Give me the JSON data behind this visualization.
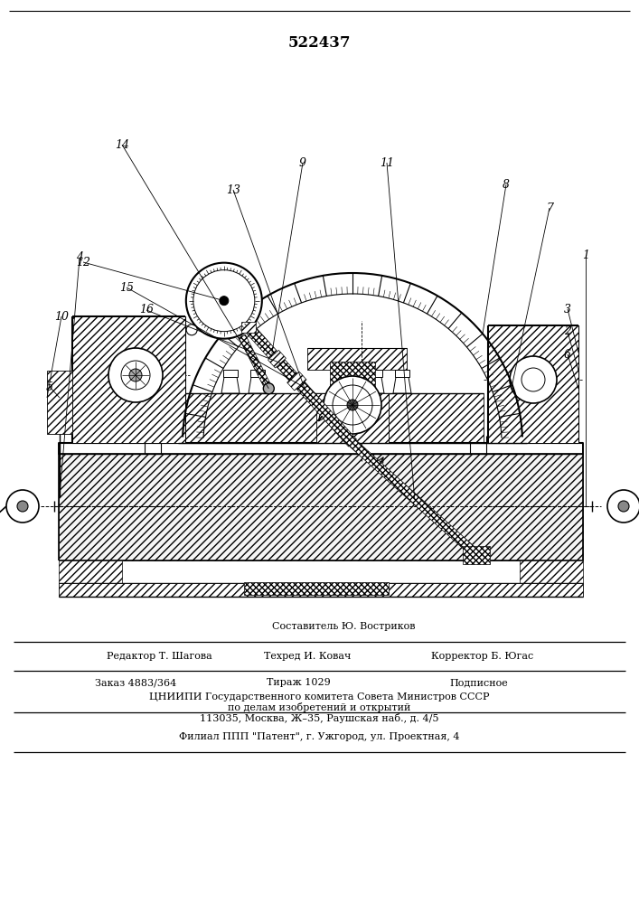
{
  "patent_number": "522437",
  "bg_color": "#ffffff",
  "lc": "#000000",
  "footer": {
    "sestavitel": "Составитель Ю. Востриков",
    "redaktor": "Редактор Т. Шагова",
    "tehred": "Техред И. Ковач",
    "korrektor": "Корректор Б. Югас",
    "zakaz": "Заказ 4883/364",
    "tirazh": "Тираж 1029",
    "podpisnoe": "Подписное",
    "cniip1": "ЦНИИПИ Государственного комитета Совета Министров СССР",
    "cniip2": "по делам изобретений и открытий",
    "addr": "113035, Москва, Ж–35, Раушская наб., д. 4/5",
    "filial": "Филиал ППП \"Патент\", г. Ужгород, ул. Проектная, 4"
  }
}
